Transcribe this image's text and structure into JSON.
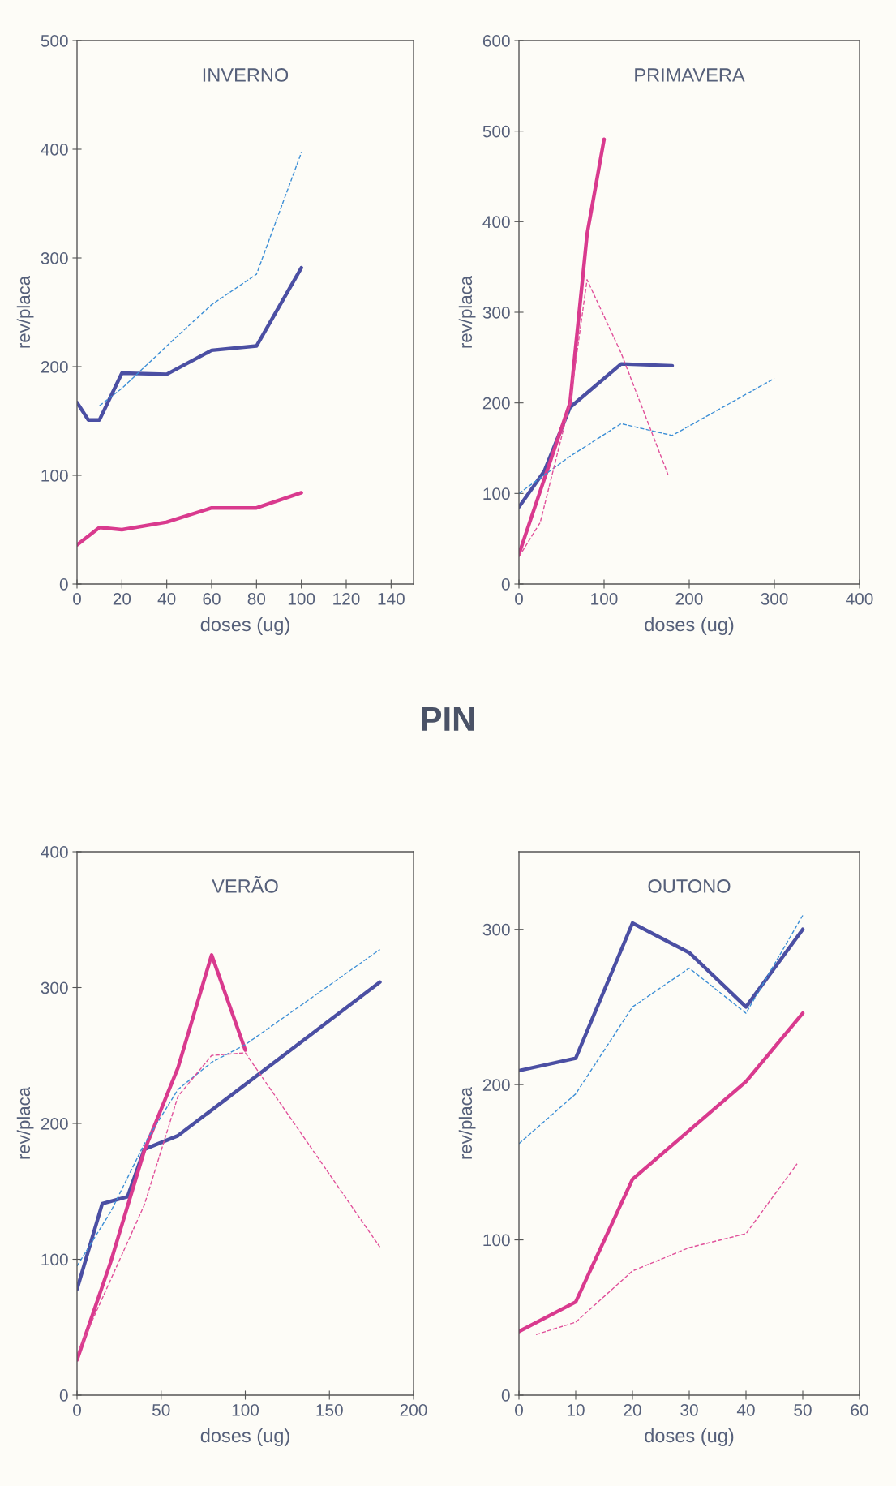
{
  "chart_data": [
    {
      "type": "line",
      "title": "INVERNO",
      "xlabel": "doses (ug)",
      "ylabel": "rev/placa",
      "annotations": [
        "PIN"
      ],
      "xlim": [
        0,
        150
      ],
      "xticks": [
        0,
        20,
        40,
        60,
        80,
        100,
        120,
        140
      ],
      "ylim": [
        0,
        500
      ],
      "yticks": [
        0,
        100,
        200,
        300,
        400,
        500
      ],
      "series": [
        {
          "color": "#4b4fa3",
          "line_style": "solid",
          "x": [
            0,
            5,
            10,
            20,
            40,
            60,
            80,
            100
          ],
          "values": [
            167,
            151,
            151,
            194,
            193,
            215,
            219,
            291
          ]
        },
        {
          "color": "#d93a8e",
          "line_style": "solid",
          "x": [
            0,
            10,
            20,
            40,
            60,
            80,
            100
          ],
          "values": [
            36,
            52,
            50,
            57,
            70,
            70,
            84
          ]
        },
        {
          "color": "#3d8fd6",
          "line_style": "dashed",
          "x": [
            10,
            20,
            40,
            60,
            80,
            100
          ],
          "values": [
            164,
            180,
            219,
            257,
            285,
            397
          ]
        }
      ]
    },
    {
      "type": "line",
      "title": "PRIMAVERA",
      "xlabel": "doses (ug)",
      "ylabel": "rev/placa",
      "xlim": [
        0,
        400
      ],
      "xticks": [
        0,
        100,
        200,
        300,
        400
      ],
      "ylim": [
        0,
        600
      ],
      "yticks": [
        0,
        100,
        200,
        300,
        400,
        500,
        600
      ],
      "series": [
        {
          "color": "#4b4fa3",
          "line_style": "solid",
          "x": [
            0,
            30,
            60,
            120,
            180
          ],
          "values": [
            85,
            125,
            195,
            243,
            241
          ]
        },
        {
          "color": "#d93a8e",
          "line_style": "solid",
          "x": [
            0,
            60,
            80,
            100
          ],
          "values": [
            33,
            200,
            386,
            491
          ]
        },
        {
          "color": "#3d8fd6",
          "line_style": "dashed",
          "x": [
            0,
            60,
            120,
            180,
            300
          ],
          "values": [
            100,
            141,
            177,
            164,
            227
          ]
        },
        {
          "color": "#e0509a",
          "line_style": "dashed",
          "x": [
            0,
            25,
            60,
            80,
            120,
            175
          ],
          "values": [
            30,
            68,
            200,
            336,
            255,
            121
          ]
        }
      ]
    },
    {
      "type": "line",
      "title": "VERÃO",
      "xlabel": "doses (ug)",
      "ylabel": "rev/placa",
      "xlim": [
        0,
        200
      ],
      "xticks": [
        0,
        50,
        100,
        150,
        200
      ],
      "ylim": [
        0,
        400
      ],
      "yticks": [
        0,
        100,
        200,
        300,
        400
      ],
      "series": [
        {
          "color": "#4b4fa3",
          "line_style": "solid",
          "x": [
            0,
            15,
            30,
            40,
            60,
            180
          ],
          "values": [
            78,
            141,
            146,
            181,
            191,
            304
          ]
        },
        {
          "color": "#d93a8e",
          "line_style": "solid",
          "x": [
            0,
            20,
            40,
            60,
            80,
            100
          ],
          "values": [
            26,
            98,
            180,
            241,
            324,
            254
          ]
        },
        {
          "color": "#3d8fd6",
          "line_style": "dashed",
          "x": [
            0,
            20,
            40,
            60,
            80,
            100,
            180
          ],
          "values": [
            95,
            135,
            185,
            225,
            245,
            258,
            328
          ]
        },
        {
          "color": "#e0509a",
          "line_style": "dashed",
          "x": [
            0,
            20,
            40,
            60,
            80,
            100,
            180
          ],
          "values": [
            30,
            85,
            140,
            220,
            250,
            252,
            109
          ]
        }
      ]
    },
    {
      "type": "line",
      "title": "OUTONO",
      "xlabel": "doses (ug)",
      "ylabel": "rev/placa",
      "xlim": [
        0,
        60
      ],
      "xticks": [
        0,
        10,
        20,
        30,
        40,
        50,
        60
      ],
      "ylim": [
        0,
        350
      ],
      "yticks": [
        0,
        100,
        200,
        300
      ],
      "series": [
        {
          "color": "#4b4fa3",
          "line_style": "solid",
          "x": [
            0,
            10,
            20,
            30,
            40,
            50
          ],
          "values": [
            209,
            217,
            304,
            285,
            250,
            300
          ]
        },
        {
          "color": "#d93a8e",
          "line_style": "solid",
          "x": [
            0,
            10,
            20,
            40,
            50
          ],
          "values": [
            41,
            60,
            139,
            202,
            246
          ]
        },
        {
          "color": "#3d8fd6",
          "line_style": "dashed",
          "x": [
            0,
            10,
            20,
            30,
            40,
            50
          ],
          "values": [
            162,
            194,
            250,
            275,
            246,
            309
          ]
        },
        {
          "color": "#e0509a",
          "line_style": "dashed",
          "x": [
            3,
            10,
            20,
            30,
            40,
            49
          ],
          "values": [
            39,
            47,
            80,
            95,
            104,
            149
          ]
        }
      ]
    }
  ]
}
